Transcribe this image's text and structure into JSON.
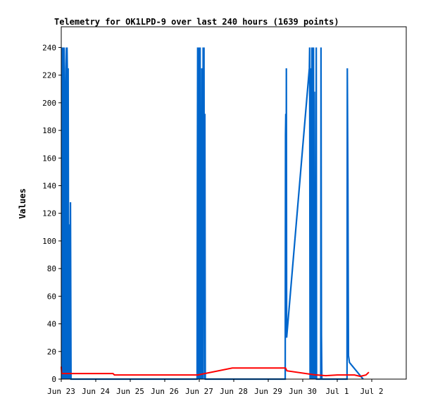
{
  "chart_data": {
    "type": "line",
    "title": "Telemetry for OK1LPD-9 over last 240 hours (1639 points)",
    "xlabel": "",
    "ylabel": "Values",
    "ylim": [
      0,
      255
    ],
    "xlim_hours": [
      0,
      240
    ],
    "y_ticks": [
      0,
      20,
      40,
      60,
      80,
      100,
      120,
      140,
      160,
      180,
      200,
      220,
      240
    ],
    "x_ticks": [
      {
        "label": "Jun 23",
        "hour": 0
      },
      {
        "label": "Jun 24",
        "hour": 24
      },
      {
        "label": "Jun 25",
        "hour": 48
      },
      {
        "label": "Jun 26",
        "hour": 72
      },
      {
        "label": "Jun 27",
        "hour": 96
      },
      {
        "label": "Jun 28",
        "hour": 120
      },
      {
        "label": "Jun 29",
        "hour": 144
      },
      {
        "label": "Jun 30",
        "hour": 168
      },
      {
        "label": "Jul 1",
        "hour": 192
      },
      {
        "label": "Jul 2",
        "hour": 216
      }
    ],
    "grid": false,
    "legend": "none",
    "series": [
      {
        "color": "#0066cc",
        "points": [
          [
            0.5,
            0
          ],
          [
            0.7,
            240
          ],
          [
            0.9,
            177
          ],
          [
            1.1,
            240
          ],
          [
            1.3,
            0
          ],
          [
            1.4,
            225
          ],
          [
            1.6,
            192
          ],
          [
            1.8,
            0
          ],
          [
            2.0,
            240
          ],
          [
            2.2,
            225
          ],
          [
            2.4,
            208
          ],
          [
            2.6,
            0
          ],
          [
            2.8,
            100
          ],
          [
            3.0,
            17
          ],
          [
            3.2,
            0
          ],
          [
            3.4,
            225
          ],
          [
            3.6,
            240
          ],
          [
            3.8,
            0
          ],
          [
            4.0,
            240
          ],
          [
            4.2,
            225
          ],
          [
            4.4,
            128
          ],
          [
            4.6,
            0
          ],
          [
            4.8,
            225
          ],
          [
            5.2,
            0
          ],
          [
            5.6,
            112
          ],
          [
            6.0,
            0
          ],
          [
            6.4,
            128
          ],
          [
            6.8,
            0
          ],
          [
            94.5,
            0
          ],
          [
            94.7,
            145
          ],
          [
            94.9,
            240
          ],
          [
            95.2,
            0
          ],
          [
            95.6,
            240
          ],
          [
            96.0,
            0
          ],
          [
            96.3,
            225
          ],
          [
            96.6,
            240
          ],
          [
            96.9,
            0
          ],
          [
            97.1,
            177
          ],
          [
            97.4,
            0
          ],
          [
            97.8,
            225
          ],
          [
            98.1,
            192
          ],
          [
            98.4,
            0
          ],
          [
            98.7,
            240
          ],
          [
            99.0,
            192
          ],
          [
            99.3,
            240
          ],
          [
            99.6,
            0
          ],
          [
            99.9,
            192
          ],
          [
            100.2,
            0
          ],
          [
            155.8,
            0
          ],
          [
            156.0,
            177
          ],
          [
            156.2,
            192
          ],
          [
            156.4,
            40
          ],
          [
            156.6,
            225
          ],
          [
            156.8,
            30
          ],
          [
            172.6,
            225
          ],
          [
            172.8,
            240
          ],
          [
            173.1,
            0
          ],
          [
            173.4,
            225
          ],
          [
            173.7,
            0
          ],
          [
            174.0,
            65
          ],
          [
            174.3,
            240
          ],
          [
            174.6,
            0
          ],
          [
            174.9,
            240
          ],
          [
            175.2,
            0
          ],
          [
            175.5,
            240
          ],
          [
            175.8,
            0
          ],
          [
            176.1,
            208
          ],
          [
            176.4,
            0
          ],
          [
            176.8,
            97
          ],
          [
            177.1,
            0
          ],
          [
            177.4,
            240
          ],
          [
            177.6,
            0
          ],
          [
            180.5,
            0
          ],
          [
            180.7,
            240
          ],
          [
            181.0,
            32
          ],
          [
            181.3,
            0
          ],
          [
            198.8,
            0
          ],
          [
            199.0,
            225
          ],
          [
            199.4,
            145
          ],
          [
            199.8,
            17
          ],
          [
            200.5,
            12
          ],
          [
            210.0,
            0
          ]
        ]
      },
      {
        "color": "#ff0000",
        "points": [
          [
            0,
            9
          ],
          [
            0.3,
            4
          ],
          [
            10,
            4
          ],
          [
            36,
            4
          ],
          [
            37,
            3
          ],
          [
            84,
            3
          ],
          [
            86,
            3
          ],
          [
            95,
            3
          ],
          [
            119,
            8
          ],
          [
            156,
            8
          ],
          [
            157,
            6
          ],
          [
            177,
            3
          ],
          [
            178,
            3
          ],
          [
            184,
            2.5
          ],
          [
            192,
            3
          ],
          [
            204,
            3
          ],
          [
            208,
            2
          ],
          [
            212,
            3
          ],
          [
            214,
            5
          ]
        ]
      }
    ]
  }
}
